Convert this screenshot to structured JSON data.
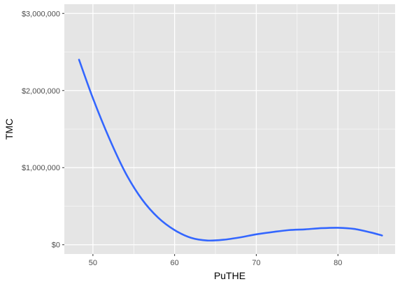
{
  "chart_data": {
    "type": "line",
    "title": "",
    "xlabel": "PuTHE",
    "ylabel": "TMC",
    "xlim": [
      46.5,
      87
    ],
    "ylim": [
      -120000,
      3120000
    ],
    "x_ticks": [
      50,
      60,
      70,
      80
    ],
    "x_tick_labels": [
      "50",
      "60",
      "70",
      "80"
    ],
    "y_ticks": [
      0,
      1000000,
      2000000,
      3000000
    ],
    "y_tick_labels": [
      "$0",
      "$1,000,000",
      "$2,000,000",
      "$3,000,000"
    ],
    "grid": true,
    "legend": "none",
    "colors": {
      "panel_background": "#e5e5e5",
      "grid": "#ffffff",
      "line": "#3366ff"
    },
    "series": [
      {
        "x": [
          48.3,
          50,
          52,
          54,
          56,
          58,
          60,
          62,
          64,
          66,
          68,
          70,
          72,
          74,
          76,
          78,
          80,
          82,
          84,
          85.4
        ],
        "y": [
          2400000,
          1900000,
          1380000,
          930000,
          590000,
          350000,
          190000,
          90000,
          55000,
          65000,
          95000,
          135000,
          165000,
          190000,
          200000,
          215000,
          220000,
          205000,
          160000,
          120000
        ]
      }
    ]
  }
}
